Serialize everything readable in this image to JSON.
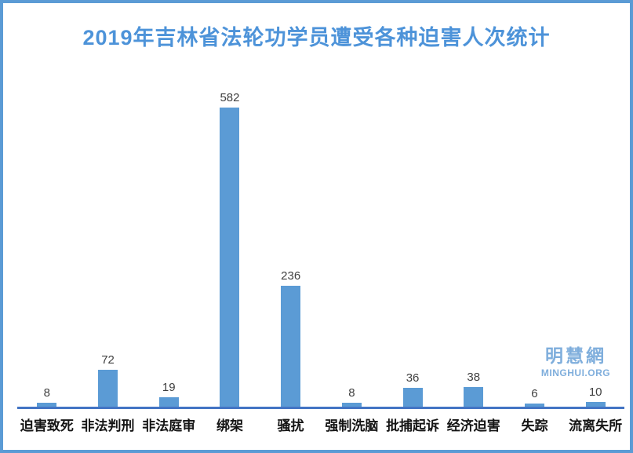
{
  "chart_data": {
    "type": "bar",
    "title": "2019年吉林省法轮功学员遭受各种迫害人次统计",
    "categories": [
      "迫害致死",
      "非法判刑",
      "非法庭审",
      "绑架",
      "骚扰",
      "强制洗脑",
      "批捕起诉",
      "经济迫害",
      "失踪",
      "流离失所"
    ],
    "values": [
      8,
      72,
      19,
      582,
      236,
      8,
      36,
      38,
      6,
      10
    ],
    "xlabel": "",
    "ylabel": "",
    "ylim": [
      0,
      600
    ],
    "grid": false,
    "legend": false,
    "data_labels": true,
    "bar_color": "#5B9BD5",
    "axis_color": "#4374C4",
    "title_color": "#4D93D9",
    "value_label_color": "#404040",
    "category_label_color": "#151515"
  },
  "watermark": {
    "chinese": "明慧網",
    "url": "MINGHUI.ORG",
    "color": "#7FAEDC"
  },
  "frame": {
    "border_color": "#5B9BD5",
    "background": "#ffffff"
  }
}
